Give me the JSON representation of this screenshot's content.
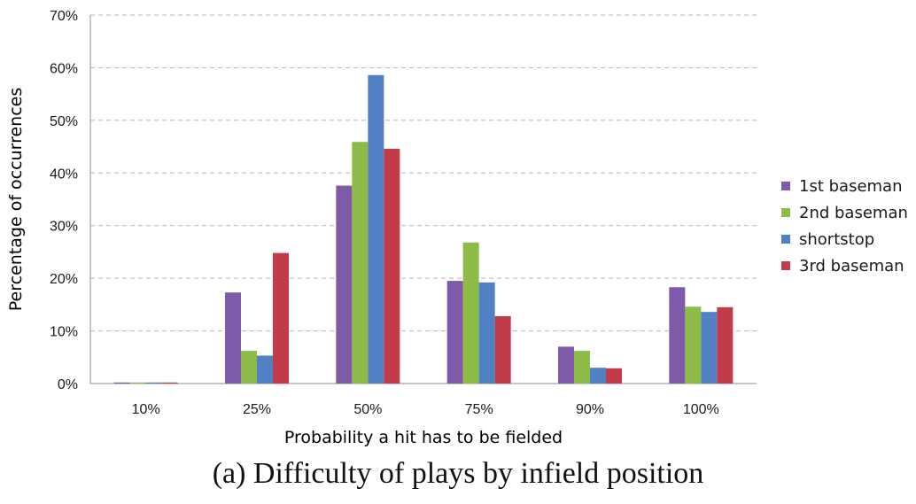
{
  "caption": "(a) Difficulty of plays by infield position",
  "chart_data": {
    "type": "bar",
    "title": "",
    "xlabel": "Probability a hit has to be fielded",
    "ylabel": "Percentage of occurrences",
    "categories": [
      "10%",
      "25%",
      "50%",
      "75%",
      "90%",
      "100%"
    ],
    "ylim": [
      0,
      70
    ],
    "yticks": [
      0,
      10,
      20,
      30,
      40,
      50,
      60,
      70
    ],
    "ytick_labels": [
      "0%",
      "10%",
      "20%",
      "30%",
      "40%",
      "50%",
      "60%",
      "70%"
    ],
    "grid": "horizontal dashed",
    "legend_position": "right",
    "series": [
      {
        "name": "1st baseman",
        "color": "#7f5aa8",
        "values": [
          0.2,
          17.3,
          37.6,
          19.5,
          7.0,
          18.3
        ]
      },
      {
        "name": "2nd baseman",
        "color": "#8dbb47",
        "values": [
          0.2,
          6.2,
          45.9,
          26.8,
          6.2,
          14.6
        ]
      },
      {
        "name": "shortstop",
        "color": "#4f81c4",
        "values": [
          0.2,
          5.3,
          58.6,
          19.2,
          3.0,
          13.6
        ]
      },
      {
        "name": "3rd baseman",
        "color": "#c23b4b",
        "values": [
          0.2,
          24.8,
          44.6,
          12.8,
          2.9,
          14.5
        ]
      }
    ]
  }
}
